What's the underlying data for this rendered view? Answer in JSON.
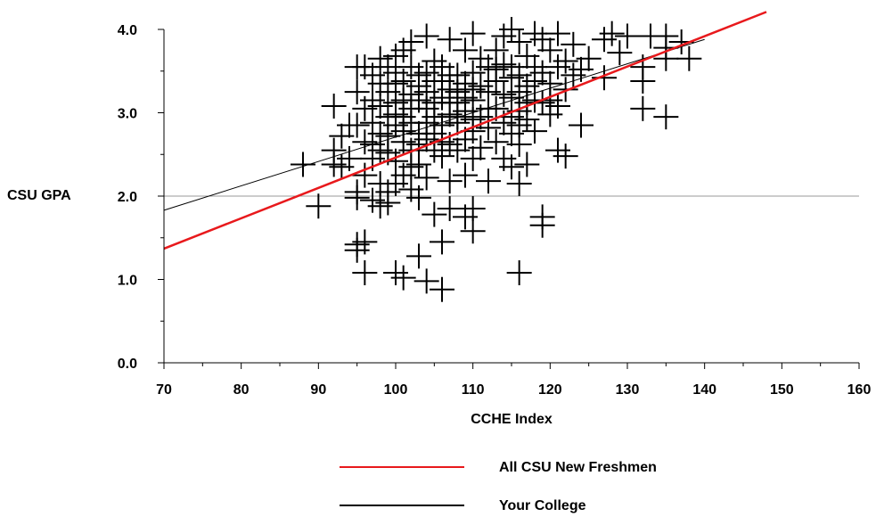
{
  "chart_data": {
    "type": "scatter",
    "title": "",
    "xlabel": "CCHE Index",
    "ylabel": "CSU GPA",
    "xlim": [
      70,
      160
    ],
    "ylim": [
      0,
      4
    ],
    "x_ticks": [
      "70",
      "80",
      "90",
      "100",
      "110",
      "120",
      "130",
      "140",
      "150",
      "160"
    ],
    "y_ticks": [
      "0.0",
      "1.0",
      "2.0",
      "3.0",
      "4.0"
    ],
    "reference_line_y": 2.0,
    "marker": "plus",
    "colors": {
      "all_csu": "#e8191c",
      "your_college": "#000000",
      "points": "#000000",
      "reference": "#999999"
    },
    "trend_lines": [
      {
        "name": "All CSU New Freshmen",
        "x": [
          70,
          148
        ],
        "y": [
          1.37,
          4.21
        ]
      },
      {
        "name": "Your College",
        "x": [
          70,
          140
        ],
        "y": [
          1.83,
          3.88
        ]
      }
    ],
    "points": [
      [
        88,
        2.38
      ],
      [
        90,
        1.88
      ],
      [
        92,
        3.08
      ],
      [
        92,
        2.55
      ],
      [
        92,
        2.38
      ],
      [
        93,
        2.35
      ],
      [
        93,
        2.72
      ],
      [
        94,
        2.85
      ],
      [
        94,
        2.45
      ],
      [
        95,
        2.05
      ],
      [
        95,
        1.98
      ],
      [
        95,
        1.42
      ],
      [
        95,
        1.35
      ],
      [
        95,
        3.55
      ],
      [
        95,
        3.25
      ],
      [
        95,
        2.85
      ],
      [
        96,
        3.55
      ],
      [
        96,
        3.05
      ],
      [
        96,
        2.25
      ],
      [
        96,
        1.08
      ],
      [
        96,
        1.45
      ],
      [
        96,
        2.65
      ],
      [
        97,
        3.15
      ],
      [
        97,
        2.88
      ],
      [
        97,
        2.45
      ],
      [
        97,
        1.95
      ],
      [
        97,
        3.45
      ],
      [
        97,
        2.62
      ],
      [
        98,
        3.65
      ],
      [
        98,
        3.35
      ],
      [
        98,
        2.75
      ],
      [
        98,
        2.15
      ],
      [
        98,
        1.88
      ],
      [
        98,
        2.55
      ],
      [
        98,
        3.08
      ],
      [
        99,
        3.25
      ],
      [
        99,
        2.95
      ],
      [
        99,
        2.52
      ],
      [
        99,
        2.05
      ],
      [
        99,
        1.92
      ],
      [
        99,
        3.55
      ],
      [
        99,
        2.72
      ],
      [
        100,
        3.68
      ],
      [
        100,
        3.35
      ],
      [
        100,
        3.12
      ],
      [
        100,
        2.85
      ],
      [
        100,
        2.42
      ],
      [
        100,
        2.15
      ],
      [
        100,
        1.08
      ],
      [
        100,
        2.98
      ],
      [
        100,
        3.48
      ],
      [
        101,
        3.75
      ],
      [
        101,
        3.38
      ],
      [
        101,
        2.95
      ],
      [
        101,
        2.65
      ],
      [
        101,
        2.25
      ],
      [
        101,
        1.02
      ],
      [
        101,
        3.15
      ],
      [
        101,
        2.78
      ],
      [
        102,
        3.55
      ],
      [
        102,
        3.22
      ],
      [
        102,
        2.88
      ],
      [
        102,
        2.55
      ],
      [
        102,
        2.08
      ],
      [
        102,
        3.85
      ],
      [
        102,
        3.05
      ],
      [
        102,
        2.35
      ],
      [
        103,
        3.45
      ],
      [
        103,
        3.15
      ],
      [
        103,
        2.75
      ],
      [
        103,
        2.38
      ],
      [
        103,
        1.98
      ],
      [
        103,
        1.28
      ],
      [
        103,
        3.32
      ],
      [
        103,
        2.62
      ],
      [
        104,
        3.92
      ],
      [
        104,
        3.48
      ],
      [
        104,
        3.05
      ],
      [
        104,
        2.68
      ],
      [
        104,
        2.22
      ],
      [
        104,
        0.98
      ],
      [
        104,
        3.25
      ],
      [
        104,
        2.88
      ],
      [
        105,
        3.38
      ],
      [
        105,
        2.95
      ],
      [
        105,
        2.55
      ],
      [
        105,
        1.78
      ],
      [
        105,
        3.62
      ],
      [
        105,
        3.12
      ],
      [
        105,
        2.75
      ],
      [
        106,
        3.55
      ],
      [
        106,
        3.18
      ],
      [
        106,
        2.85
      ],
      [
        106,
        2.48
      ],
      [
        106,
        1.45
      ],
      [
        106,
        0.88
      ],
      [
        106,
        3.38
      ],
      [
        106,
        2.65
      ],
      [
        107,
        3.88
      ],
      [
        107,
        3.28
      ],
      [
        107,
        2.98
      ],
      [
        107,
        2.62
      ],
      [
        107,
        2.18
      ],
      [
        107,
        1.85
      ],
      [
        107,
        3.45
      ],
      [
        107,
        3.12
      ],
      [
        108,
        3.45
      ],
      [
        108,
        3.12
      ],
      [
        108,
        2.88
      ],
      [
        108,
        2.55
      ],
      [
        108,
        3.25
      ],
      [
        108,
        2.95
      ],
      [
        109,
        3.75
      ],
      [
        109,
        3.35
      ],
      [
        109,
        3.02
      ],
      [
        109,
        2.68
      ],
      [
        109,
        2.25
      ],
      [
        109,
        1.75
      ],
      [
        109,
        3.18
      ],
      [
        110,
        3.95
      ],
      [
        110,
        3.48
      ],
      [
        110,
        3.15
      ],
      [
        110,
        2.78
      ],
      [
        110,
        2.45
      ],
      [
        110,
        1.85
      ],
      [
        110,
        1.58
      ],
      [
        110,
        3.28
      ],
      [
        110,
        2.92
      ],
      [
        111,
        3.65
      ],
      [
        111,
        3.32
      ],
      [
        111,
        2.95
      ],
      [
        111,
        2.58
      ],
      [
        112,
        3.55
      ],
      [
        112,
        3.25
      ],
      [
        112,
        2.82
      ],
      [
        112,
        2.18
      ],
      [
        112,
        3.05
      ],
      [
        113,
        3.75
      ],
      [
        113,
        3.38
      ],
      [
        113,
        3.05
      ],
      [
        113,
        2.65
      ],
      [
        113,
        3.52
      ],
      [
        114,
        3.92
      ],
      [
        114,
        3.58
      ],
      [
        114,
        3.22
      ],
      [
        114,
        2.88
      ],
      [
        114,
        2.45
      ],
      [
        115,
        4.0
      ],
      [
        115,
        3.55
      ],
      [
        115,
        3.18
      ],
      [
        115,
        2.75
      ],
      [
        115,
        2.35
      ],
      [
        115,
        3.42
      ],
      [
        115,
        2.95
      ],
      [
        116,
        3.85
      ],
      [
        116,
        3.45
      ],
      [
        116,
        3.02
      ],
      [
        116,
        2.62
      ],
      [
        116,
        2.15
      ],
      [
        116,
        1.08
      ],
      [
        116,
        3.25
      ],
      [
        116,
        2.85
      ],
      [
        117,
        3.68
      ],
      [
        117,
        3.32
      ],
      [
        117,
        2.92
      ],
      [
        117,
        2.38
      ],
      [
        117,
        3.12
      ],
      [
        118,
        3.95
      ],
      [
        118,
        3.55
      ],
      [
        118,
        3.15
      ],
      [
        118,
        2.78
      ],
      [
        118,
        3.38
      ],
      [
        119,
        3.88
      ],
      [
        119,
        3.48
      ],
      [
        119,
        3.12
      ],
      [
        119,
        1.75
      ],
      [
        119,
        1.65
      ],
      [
        120,
        3.75
      ],
      [
        120,
        3.35
      ],
      [
        120,
        2.98
      ],
      [
        120,
        3.15
      ],
      [
        121,
        3.95
      ],
      [
        121,
        3.55
      ],
      [
        121,
        3.08
      ],
      [
        121,
        2.55
      ],
      [
        122,
        3.62
      ],
      [
        122,
        3.28
      ],
      [
        122,
        2.48
      ],
      [
        123,
        3.82
      ],
      [
        123,
        3.45
      ],
      [
        124,
        3.52
      ],
      [
        124,
        2.85
      ],
      [
        125,
        3.65
      ],
      [
        127,
        3.88
      ],
      [
        127,
        3.42
      ],
      [
        128,
        3.95
      ],
      [
        129,
        3.72
      ],
      [
        130,
        3.92
      ],
      [
        132,
        3.55
      ],
      [
        132,
        3.38
      ],
      [
        132,
        3.05
      ],
      [
        133,
        3.92
      ],
      [
        135,
        3.92
      ],
      [
        135,
        3.78
      ],
      [
        135,
        3.65
      ],
      [
        135,
        2.95
      ],
      [
        137,
        3.85
      ],
      [
        138,
        3.65
      ]
    ]
  },
  "legend": [
    {
      "label": "All CSU New Freshmen",
      "color": "#e8191c"
    },
    {
      "label": "Your College",
      "color": "#000000"
    }
  ]
}
